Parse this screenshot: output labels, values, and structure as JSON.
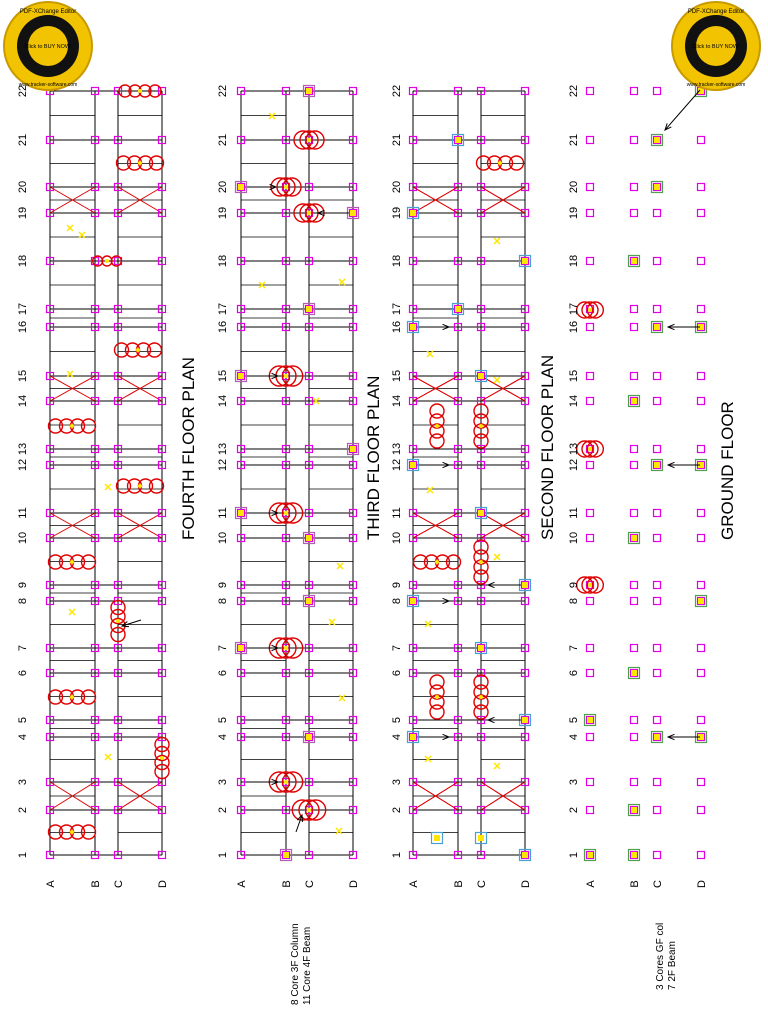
{
  "titles": {
    "fourth": "FOURTH FLOOR PLAN",
    "third": "THIRD FLOOR PLAN",
    "second": "SECOND FLOOR PLAN",
    "ground": "GROUND FLOOR"
  },
  "grid_numbers": [
    "1",
    "2",
    "3",
    "4",
    "5",
    "6",
    "7",
    "8",
    "9",
    "10",
    "11",
    "12",
    "13",
    "14",
    "15",
    "16",
    "17",
    "18",
    "19",
    "20",
    "21",
    "22"
  ],
  "grid_letters": [
    "A",
    "B",
    "C",
    "D"
  ],
  "notes": {
    "third_note_1": "8 Core 3F Column",
    "third_note_2": "11 Core 4F Beam",
    "ground_note_1": "3 Cores GF col",
    "ground_note_2": "7 2F Beam"
  },
  "watermark": {
    "line1": "PDF-XChange Editor",
    "line2": "Click to BUY NOW!",
    "line3": "www.tracker-software.com"
  },
  "colors": {
    "grid_line": "#000000",
    "column_marker": "#e100e1",
    "highlight_yellow": "#ffe600",
    "cloud_red": "#e00000",
    "bracing_red": "#e00000",
    "badge_gold": "#f2c300"
  }
}
